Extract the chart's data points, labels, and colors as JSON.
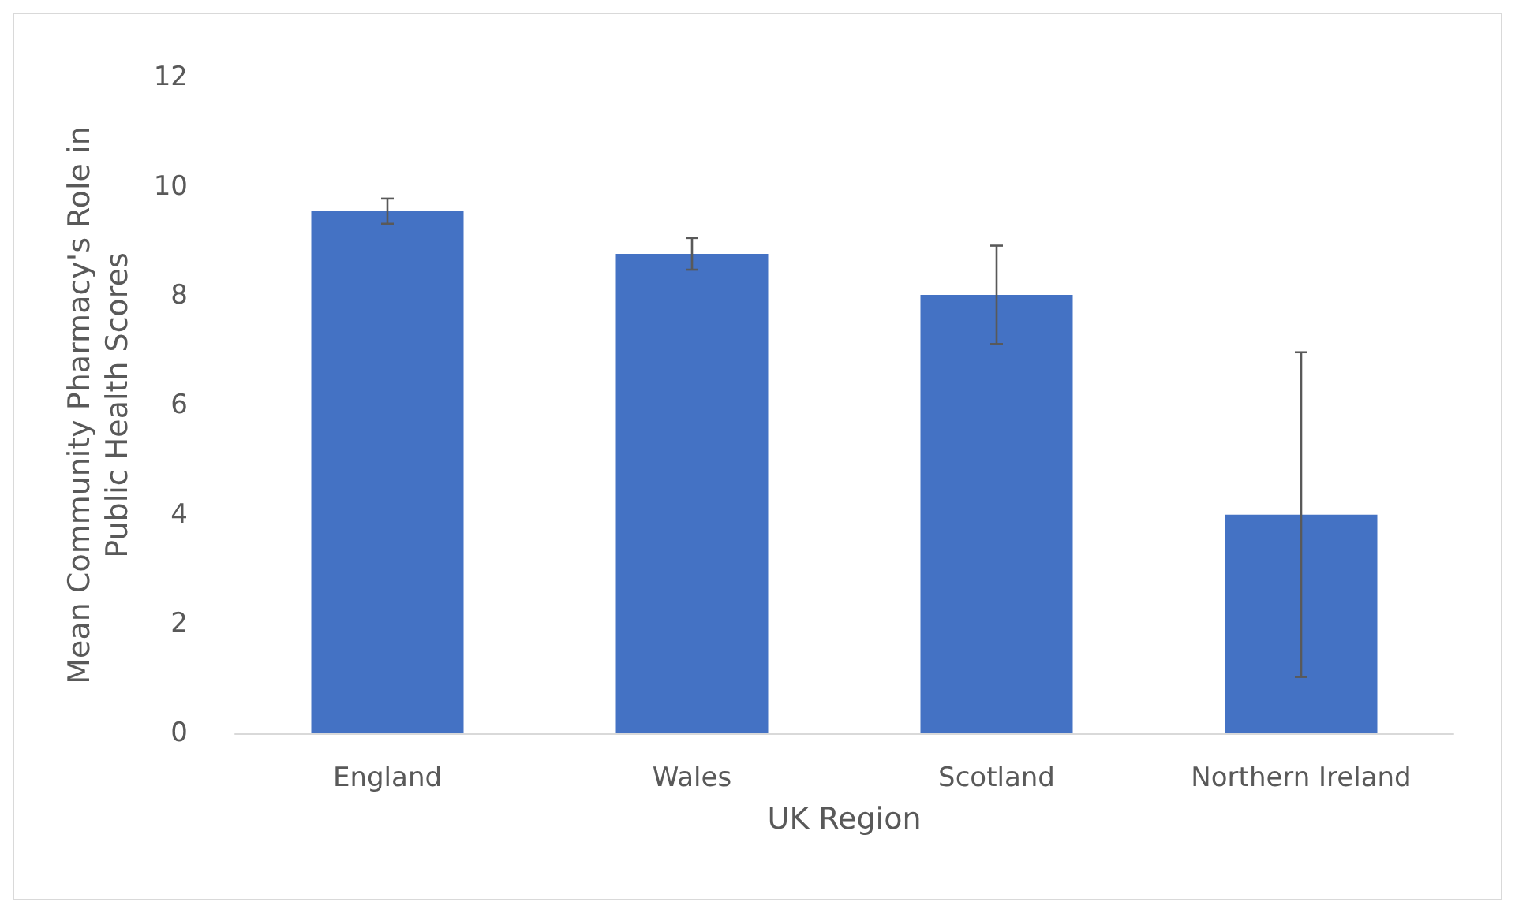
{
  "chart_data": {
    "type": "bar",
    "xlabel": "UK Region",
    "ylabel": "Mean Community Pharmacy's Role in\nPublic Health Scores",
    "categories": [
      "England",
      "Wales",
      "Scotland",
      "Northern Ireland"
    ],
    "values": [
      9.55,
      8.77,
      8.02,
      4.0
    ],
    "errors": [
      0.23,
      0.29,
      0.9,
      2.97
    ],
    "color": "#4472c4",
    "ylim": [
      0,
      12
    ],
    "yticks": [
      0,
      2,
      4,
      6,
      8,
      10,
      12
    ],
    "grid": false
  }
}
